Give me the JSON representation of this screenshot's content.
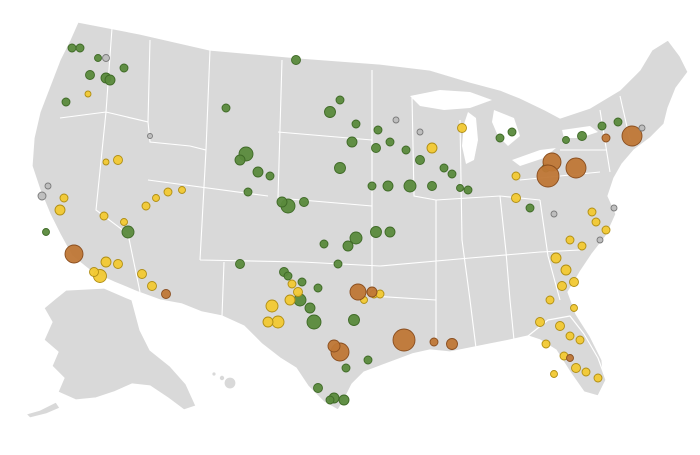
{
  "colors": {
    "land": "#d9d9d9",
    "border": "#ffffff",
    "green": "#5a8a3c",
    "green_stroke": "#3f6a27",
    "yellow": "#f2c933",
    "yellow_stroke": "#b08e13",
    "orange": "#bf7736",
    "orange_stroke": "#8a4e1f",
    "gray": "#bdbdbd",
    "gray_stroke": "#7a7a7a"
  },
  "map": {
    "region": "contiguous-us-alaska-hawaii",
    "legend": "none",
    "title": ""
  }
}
